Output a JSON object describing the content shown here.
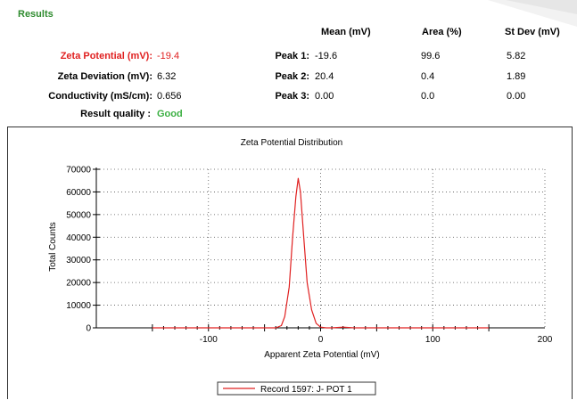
{
  "results": {
    "title": "Results",
    "headers": {
      "mean": "Mean (mV)",
      "area": "Area (%)",
      "stdev": "St Dev (mV)"
    },
    "metrics": [
      {
        "label": "Zeta Potential (mV):",
        "value": "-19.4",
        "color": "#e02020"
      },
      {
        "label": "Zeta Deviation (mV):",
        "value": "6.32"
      },
      {
        "label": "Conductivity (mS/cm):",
        "value": "0.656"
      },
      {
        "label": "Result quality :",
        "value": "Good",
        "color": "#3cb043"
      }
    ],
    "peaks": [
      {
        "label": "Peak 1:",
        "mean": "-19.6",
        "area": "99.6",
        "stdev": "5.82"
      },
      {
        "label": "Peak 2:",
        "mean": "20.4",
        "area": "0.4",
        "stdev": "1.89"
      },
      {
        "label": "Peak 3:",
        "mean": "0.00",
        "area": "0.0",
        "stdev": "0.00"
      }
    ]
  },
  "chart_data": {
    "type": "line",
    "title": "Zeta Potential Distribution",
    "xlabel": "Apparent Zeta Potential (mV)",
    "ylabel": "Total Counts",
    "xlim": [
      -200,
      200
    ],
    "ylim": [
      0,
      70000
    ],
    "xticks": [
      -100,
      0,
      100,
      200
    ],
    "yticks": [
      0,
      10000,
      20000,
      30000,
      40000,
      50000,
      60000,
      70000
    ],
    "grid": true,
    "legend_position": "bottom",
    "series": [
      {
        "name": "Record 1597: J- POT 1",
        "color": "#e02020",
        "x": [
          -150,
          -60,
          -40,
          -35,
          -32,
          -28,
          -25,
          -22,
          -20,
          -18,
          -15,
          -12,
          -8,
          -4,
          0,
          5,
          10,
          20,
          30,
          150
        ],
        "y": [
          0,
          0,
          0,
          1000,
          5000,
          18000,
          40000,
          58000,
          66000,
          60000,
          40000,
          20000,
          8000,
          2000,
          300,
          0,
          0,
          300,
          0,
          0
        ]
      }
    ]
  }
}
